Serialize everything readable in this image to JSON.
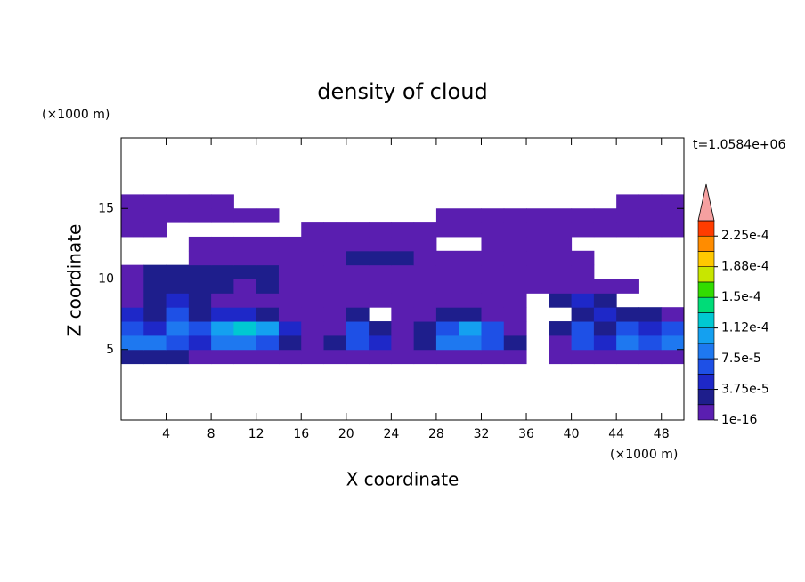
{
  "chart_data": {
    "type": "contour",
    "title": "density of cloud",
    "xlabel": "X coordinate",
    "ylabel": "Z coordinate",
    "x_unit": "(×1000 m)",
    "y_unit": "(×1000 m)",
    "annotation": "t=1.0584e+06",
    "xlim": [
      0,
      50
    ],
    "ylim": [
      0,
      20
    ],
    "xticks": [
      4,
      8,
      12,
      16,
      20,
      24,
      28,
      32,
      36,
      40,
      44,
      48
    ],
    "yticks": [
      5,
      10,
      15
    ],
    "x": [
      1,
      3,
      5,
      7,
      9,
      11,
      13,
      15,
      17,
      19,
      21,
      23,
      25,
      27,
      29,
      31,
      33,
      35,
      37,
      39,
      41,
      43,
      45,
      47,
      49
    ],
    "z": [
      4.5,
      5.5,
      6.5,
      7.5,
      8.5,
      9.5,
      10.5,
      11.5,
      12.5,
      13.5,
      14.5,
      15.5
    ],
    "values": [
      [
        2.5e-05,
        2.5e-05,
        2.5e-05,
        1e-06,
        1e-06,
        1e-06,
        1e-06,
        1e-06,
        1e-06,
        1e-06,
        1e-06,
        1e-06,
        1e-06,
        1e-06,
        1e-06,
        1e-06,
        1e-06,
        1e-06,
        null,
        1e-06,
        1e-06,
        1e-06,
        1e-06,
        1e-06,
        1e-06
      ],
      [
        8e-05,
        8e-05,
        6.5e-05,
        4.5e-05,
        8e-05,
        8e-05,
        6.5e-05,
        2.5e-05,
        1e-06,
        2.5e-05,
        6.5e-05,
        4.5e-05,
        1e-06,
        2.5e-05,
        8e-05,
        8e-05,
        6.5e-05,
        2.5e-05,
        null,
        1e-06,
        6.5e-05,
        4.5e-05,
        8e-05,
        6.5e-05,
        8e-05
      ],
      [
        6.5e-05,
        4.5e-05,
        8e-05,
        6.5e-05,
        0.0001,
        0.00013,
        0.0001,
        4.5e-05,
        1e-06,
        1e-06,
        6.5e-05,
        2.5e-05,
        1e-06,
        2.5e-05,
        6.5e-05,
        0.0001,
        6.5e-05,
        1e-06,
        null,
        2.5e-05,
        6.5e-05,
        2.5e-05,
        6.5e-05,
        4.5e-05,
        6.5e-05
      ],
      [
        4.5e-05,
        2.5e-05,
        6.5e-05,
        2.5e-05,
        4.5e-05,
        4.5e-05,
        2.5e-05,
        1e-06,
        1e-06,
        1e-06,
        2.5e-05,
        null,
        1e-06,
        1e-06,
        2.5e-05,
        2.5e-05,
        1e-06,
        1e-06,
        null,
        null,
        2.5e-05,
        4.5e-05,
        2.5e-05,
        2.5e-05,
        1e-06
      ],
      [
        1e-06,
        2.5e-05,
        4.5e-05,
        2.5e-05,
        1e-06,
        1e-06,
        1e-06,
        1e-06,
        1e-06,
        1e-06,
        1e-06,
        1e-06,
        1e-06,
        1e-06,
        1e-06,
        1e-06,
        1e-06,
        1e-06,
        null,
        2.5e-05,
        4.5e-05,
        2.5e-05,
        null,
        null,
        null
      ],
      [
        1e-06,
        2.5e-05,
        2.5e-05,
        2.5e-05,
        2.5e-05,
        1e-06,
        2.5e-05,
        1e-06,
        1e-06,
        1e-06,
        1e-06,
        1e-06,
        1e-06,
        1e-06,
        1e-06,
        1e-06,
        1e-06,
        1e-06,
        1e-06,
        1e-06,
        1e-06,
        1e-06,
        1e-06,
        null,
        null
      ],
      [
        1e-06,
        2.5e-05,
        2.5e-05,
        2.5e-05,
        2.5e-05,
        2.5e-05,
        2.5e-05,
        1e-06,
        1e-06,
        1e-06,
        1e-06,
        1e-06,
        1e-06,
        1e-06,
        1e-06,
        1e-06,
        1e-06,
        1e-06,
        1e-06,
        1e-06,
        1e-06,
        null,
        null,
        null,
        null
      ],
      [
        null,
        null,
        null,
        1e-06,
        1e-06,
        1e-06,
        1e-06,
        1e-06,
        1e-06,
        1e-06,
        2.5e-05,
        2.5e-05,
        2.5e-05,
        1e-06,
        1e-06,
        1e-06,
        1e-06,
        1e-06,
        1e-06,
        1e-06,
        1e-06,
        null,
        null,
        null,
        null
      ],
      [
        null,
        null,
        null,
        1e-06,
        1e-06,
        1e-06,
        1e-06,
        1e-06,
        1e-06,
        1e-06,
        1e-06,
        1e-06,
        1e-06,
        1e-06,
        null,
        null,
        1e-06,
        1e-06,
        1e-06,
        1e-06,
        null,
        null,
        null,
        null,
        null
      ],
      [
        1e-06,
        1e-06,
        null,
        null,
        null,
        null,
        null,
        null,
        1e-06,
        1e-06,
        1e-06,
        1e-06,
        1e-06,
        1e-06,
        1e-06,
        1e-06,
        1e-06,
        1e-06,
        1e-06,
        1e-06,
        1e-06,
        1e-06,
        1e-06,
        1e-06,
        1e-06
      ],
      [
        1e-06,
        1e-06,
        1e-06,
        1e-06,
        1e-06,
        1e-06,
        1e-06,
        null,
        null,
        null,
        null,
        null,
        null,
        null,
        1e-06,
        1e-06,
        1e-06,
        1e-06,
        1e-06,
        1e-06,
        1e-06,
        1e-06,
        1e-06,
        1e-06,
        1e-06
      ],
      [
        1e-06,
        1e-06,
        1e-06,
        1e-06,
        1e-06,
        null,
        null,
        null,
        null,
        null,
        null,
        null,
        null,
        null,
        null,
        null,
        null,
        null,
        null,
        null,
        null,
        null,
        1e-06,
        1e-06,
        1e-06
      ]
    ],
    "levels": [
      1e-16,
      1.875e-05,
      3.75e-05,
      5.625e-05,
      7.5e-05,
      9.375e-05,
      0.0001125,
      0.00013125,
      0.00015,
      0.00016875,
      0.0001875,
      0.00020625,
      0.000225,
      0.00024375
    ],
    "colors": [
      "#5a1eb0",
      "#1e1e8c",
      "#1e28c8",
      "#1e50e6",
      "#1e78f0",
      "#14a0f0",
      "#00c8d2",
      "#00dc78",
      "#32dc00",
      "#c8e600",
      "#ffc800",
      "#ff8c00",
      "#ff3c00"
    ],
    "extend_color": "#f5a0a0",
    "colorbar_ticks": [
      1e-16,
      {
        "value": 3.75e-05,
        "label": "3.75e-5"
      },
      {
        "value": 7.5e-05,
        "label": "7.5e-5"
      },
      {
        "value": 0.0001125,
        "label": "1.12e-4"
      },
      {
        "value": 0.00015,
        "label": "1.5e-4"
      },
      {
        "value": 0.0001875,
        "label": "1.88e-4"
      },
      {
        "value": 0.000225,
        "label": "2.25e-4"
      }
    ]
  }
}
